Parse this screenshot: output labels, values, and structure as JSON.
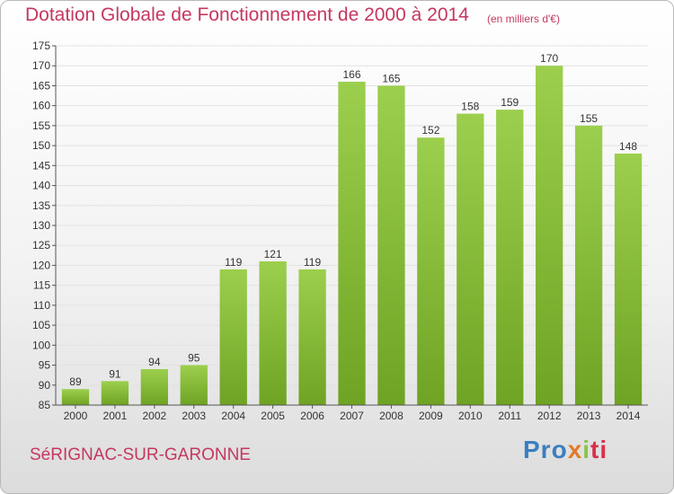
{
  "title": "Dotation Globale de Fonctionnement de 2000 à 2014",
  "subtitle": "(en milliers d'€)",
  "commune": "SéRIGNAC-SUR-GARONNE",
  "logo": {
    "p1": "Pro",
    "p2": "x",
    "p3": "i",
    "p4": "ti"
  },
  "colors": {
    "title": "#c4385f",
    "bar_top": "#9ccf4d",
    "bar_bottom": "#6fa323"
  },
  "chart_data": {
    "type": "bar",
    "categories": [
      "2000",
      "2001",
      "2002",
      "2003",
      "2004",
      "2005",
      "2006",
      "2007",
      "2008",
      "2009",
      "2010",
      "2011",
      "2012",
      "2013",
      "2014"
    ],
    "values": [
      89,
      91,
      94,
      95,
      119,
      121,
      119,
      166,
      165,
      152,
      158,
      159,
      170,
      155,
      148
    ],
    "data_labels": [
      "89",
      "91",
      "94",
      "95",
      "119",
      "121",
      "119",
      "166",
      "165",
      "152",
      "158",
      "159",
      "170",
      "155",
      "148"
    ],
    "title": "Dotation Globale de Fonctionnement de 2000 à 2014",
    "xlabel": "",
    "ylabel": "",
    "ylim": [
      85,
      175
    ],
    "yticks": [
      "85",
      "90",
      "95",
      "100",
      "105",
      "110",
      "115",
      "120",
      "125",
      "130",
      "135",
      "140",
      "145",
      "150",
      "155",
      "160",
      "165",
      "170",
      "175"
    ],
    "grid": true
  }
}
